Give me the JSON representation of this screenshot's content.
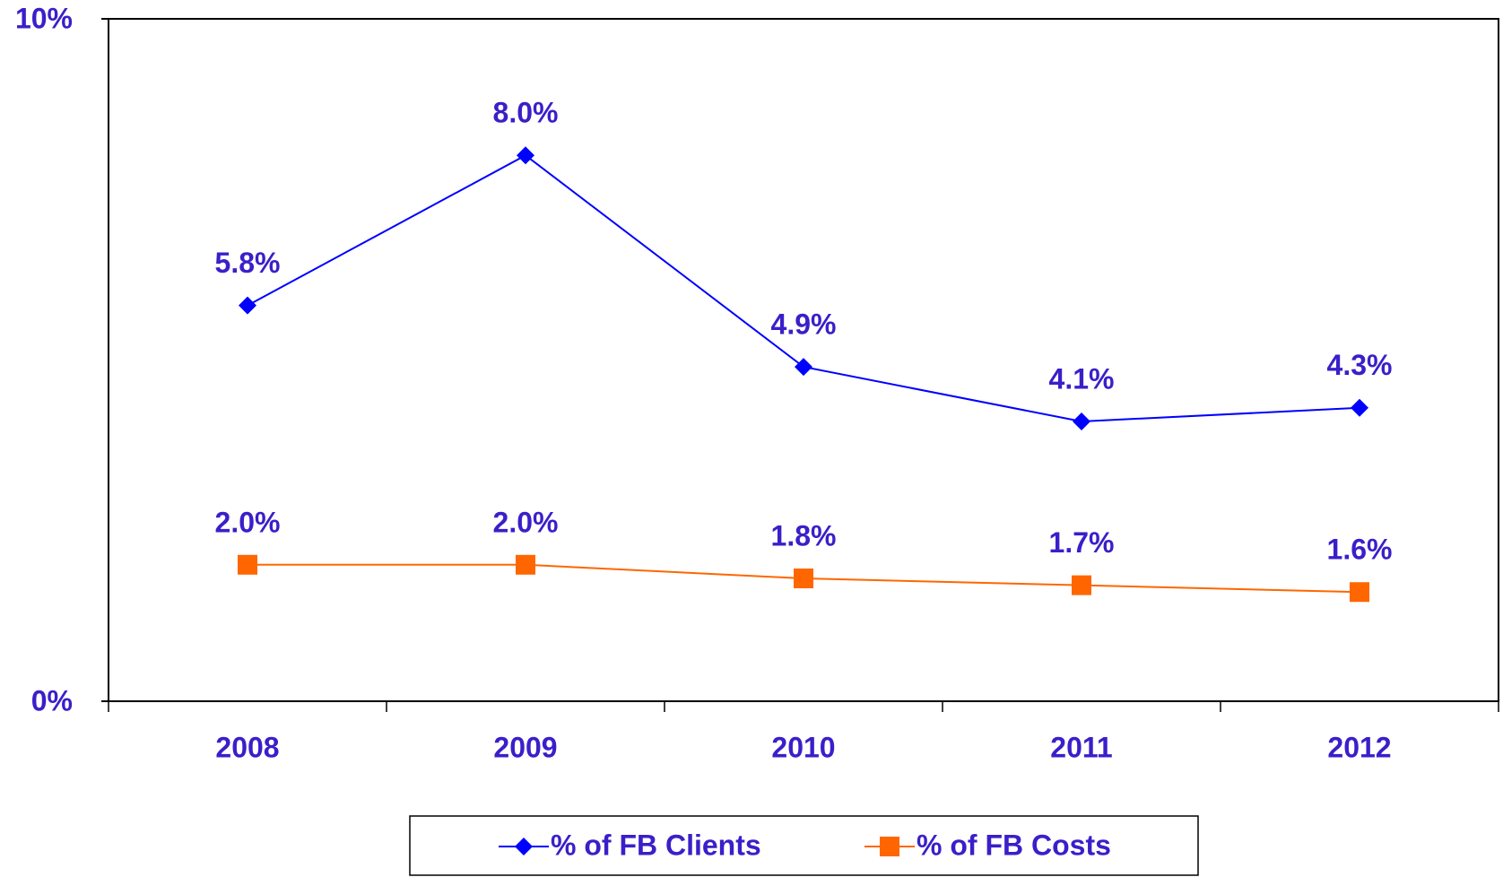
{
  "chart_data": {
    "type": "line",
    "categories": [
      "2008",
      "2009",
      "2010",
      "2011",
      "2012"
    ],
    "series": [
      {
        "name": "% of FB Clients",
        "color": "#0000ff",
        "marker": "diamond",
        "values": [
          5.8,
          8.0,
          4.9,
          4.1,
          4.3
        ],
        "value_labels": [
          "5.8%",
          "8.0%",
          "4.9%",
          "4.1%",
          "4.3%"
        ]
      },
      {
        "name": "% of FB Costs",
        "color": "#ff6600",
        "marker": "square",
        "values": [
          2.0,
          2.0,
          1.8,
          1.7,
          1.6
        ],
        "value_labels": [
          "2.0%",
          "2.0%",
          "1.8%",
          "1.7%",
          "1.6%"
        ]
      }
    ],
    "ylim": [
      0,
      10
    ],
    "yticks": [
      {
        "value": 0,
        "label": "0%"
      },
      {
        "value": 10,
        "label": "10%"
      }
    ],
    "grid": false,
    "legend": "bottom"
  }
}
